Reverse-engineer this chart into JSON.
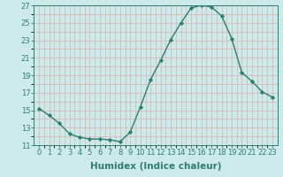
{
  "x": [
    0,
    1,
    2,
    3,
    4,
    5,
    6,
    7,
    8,
    9,
    10,
    11,
    12,
    13,
    14,
    15,
    16,
    17,
    18,
    19,
    20,
    21,
    22,
    23
  ],
  "y": [
    15.2,
    14.4,
    13.5,
    12.3,
    11.9,
    11.7,
    11.7,
    11.6,
    11.4,
    12.5,
    15.4,
    18.5,
    20.7,
    23.1,
    25.0,
    26.7,
    27.0,
    26.8,
    25.8,
    23.2,
    19.3,
    18.3,
    17.1,
    16.5
  ],
  "line_color": "#2e7d6e",
  "marker": "D",
  "marker_size": 2.2,
  "line_width": 1.0,
  "xlabel": "Humidex (Indice chaleur)",
  "xlabel_fontsize": 7.5,
  "background_color": "#cceaea",
  "grid_color": "#d9b8b8",
  "ylim": [
    11,
    27
  ],
  "yticks": [
    11,
    13,
    15,
    17,
    19,
    21,
    23,
    25,
    27
  ],
  "xticks": [
    0,
    1,
    2,
    3,
    4,
    5,
    6,
    7,
    8,
    9,
    10,
    11,
    12,
    13,
    14,
    15,
    16,
    17,
    18,
    19,
    20,
    21,
    22,
    23
  ],
  "tick_fontsize": 6.0,
  "tick_color": "#2e7d6e"
}
